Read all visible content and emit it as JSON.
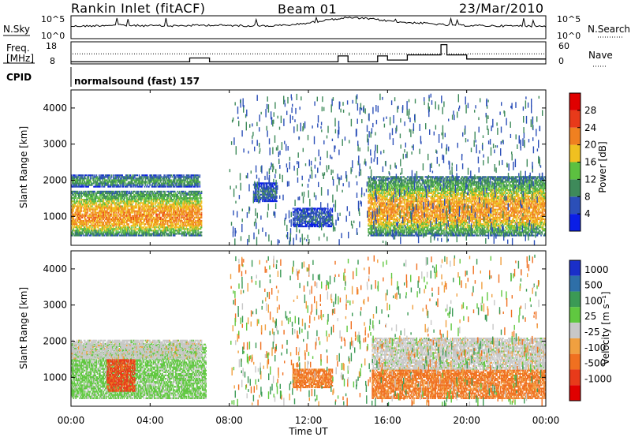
{
  "header": {
    "station": "Rankin Inlet (fitACF)",
    "beam": "Beam 01",
    "date": "23/Mar/2010"
  },
  "noise_panel": {
    "left_label": "N.Sky",
    "left_ticks": [
      "10^5",
      "10^0"
    ],
    "right_ticks": [
      "10^5",
      "10^0"
    ],
    "right_label": "N.Search"
  },
  "freq_panel": {
    "left_label_1": "Freq.",
    "left_label_2": "[MHz]",
    "left_ticks": [
      "18",
      "8"
    ],
    "right_ticks": [
      "60",
      "0"
    ],
    "right_label": "Nave"
  },
  "cpid_panel": {
    "label": "CPID",
    "text": "normalsound (fast) 157"
  },
  "x_axis": {
    "label": "Time UT",
    "ticks": [
      "00:00",
      "04:00",
      "08:00",
      "12:00",
      "16:00",
      "20:00",
      "00:00"
    ]
  },
  "power_panel": {
    "ylabel": "Slant Range [km]",
    "yticks": [
      "1000",
      "2000",
      "3000",
      "4000"
    ],
    "colorbar_label": "Power [dB]",
    "colorbar_ticks": [
      "4",
      "8",
      "12",
      "16",
      "20",
      "24",
      "28"
    ],
    "colors": [
      "#0a1ee6",
      "#2b4fb8",
      "#3e8a5a",
      "#5cc040",
      "#f0c020",
      "#f08020",
      "#e83a1a",
      "#e00000"
    ]
  },
  "velocity_panel": {
    "ylabel": "Slant Range [km]",
    "yticks": [
      "1000",
      "2000",
      "3000",
      "4000"
    ],
    "colorbar_label": "Velocity [m s⁻¹]",
    "colorbar_ticks": [
      "1000",
      "500",
      "100",
      "25",
      "-25",
      "-100",
      "-500",
      "-1000"
    ],
    "colors": [
      "#1a2fc8",
      "#2e6fa8",
      "#3b9a55",
      "#60c840",
      "#c8c8c8",
      "#f0a040",
      "#f07020",
      "#e83a1a",
      "#e00000"
    ]
  },
  "chart_data": [
    {
      "type": "line",
      "name": "noise",
      "x_range_hours": [
        0,
        24
      ],
      "x": [
        0,
        1,
        2,
        3,
        4,
        5,
        6,
        7,
        8,
        9,
        10,
        11,
        12,
        13,
        14,
        15,
        16,
        17,
        18,
        19,
        20,
        21,
        22,
        23,
        24
      ],
      "sky_level": [
        0.55,
        0.56,
        0.6,
        0.58,
        0.57,
        0.56,
        0.58,
        0.6,
        0.58,
        0.57,
        0.56,
        0.6,
        0.7,
        0.85,
        0.95,
        0.9,
        0.8,
        0.72,
        0.68,
        0.6,
        0.58,
        0.57,
        0.56,
        0.56,
        0.55
      ]
    },
    {
      "type": "line",
      "name": "frequency",
      "x": [
        0,
        6,
        6,
        7,
        7,
        13.5,
        13.5,
        14,
        14,
        15.5,
        15.5,
        16,
        16,
        17,
        17,
        18.7,
        18.7,
        19,
        19,
        20,
        20,
        24
      ],
      "freq_mhz": [
        8.6,
        8.6,
        10.5,
        10.5,
        8.6,
        8.6,
        11.5,
        11.5,
        8.6,
        8.6,
        11.5,
        11.5,
        9.5,
        9.5,
        12,
        12,
        17,
        17,
        12,
        12,
        10,
        10
      ],
      "nave_dotted_level": 12.5
    },
    {
      "type": "heatmap",
      "name": "power",
      "x_range_hours": [
        0,
        24
      ],
      "y_range_km": [
        200,
        4500
      ],
      "bands": [
        {
          "t0": 0,
          "t1": 6.6,
          "r0": 450,
          "r1": 1700,
          "peak": 27
        },
        {
          "t0": 0,
          "t1": 6.5,
          "r0": 1800,
          "r1": 2150,
          "peak": 14
        },
        {
          "t0": 9.2,
          "t1": 10.4,
          "r0": 1400,
          "r1": 1900,
          "peak": 10
        },
        {
          "t0": 11.2,
          "t1": 13.2,
          "r0": 700,
          "r1": 1200,
          "peak": 9
        },
        {
          "t0": 15,
          "t1": 24,
          "r0": 450,
          "r1": 2100,
          "peak": 26
        }
      ]
    },
    {
      "type": "heatmap",
      "name": "velocity",
      "x_range_hours": [
        0,
        24
      ],
      "y_range_km": [
        200,
        4500
      ],
      "bands": [
        {
          "t0": 0,
          "t1": 6.8,
          "r0": 400,
          "r1": 1900,
          "value": 50
        },
        {
          "t0": 0,
          "t1": 6.6,
          "r0": 1500,
          "r1": 2000,
          "value": 0
        },
        {
          "t0": 1.8,
          "t1": 3.2,
          "r0": 600,
          "r1": 1500,
          "value": -600
        },
        {
          "t0": 11.2,
          "t1": 13.2,
          "r0": 700,
          "r1": 1200,
          "value": -150
        },
        {
          "t0": 15.2,
          "t1": 24,
          "r0": 1200,
          "r1": 2100,
          "value": 0
        },
        {
          "t0": 15.2,
          "t1": 24,
          "r0": 400,
          "r1": 1200,
          "value": -150
        }
      ]
    }
  ]
}
